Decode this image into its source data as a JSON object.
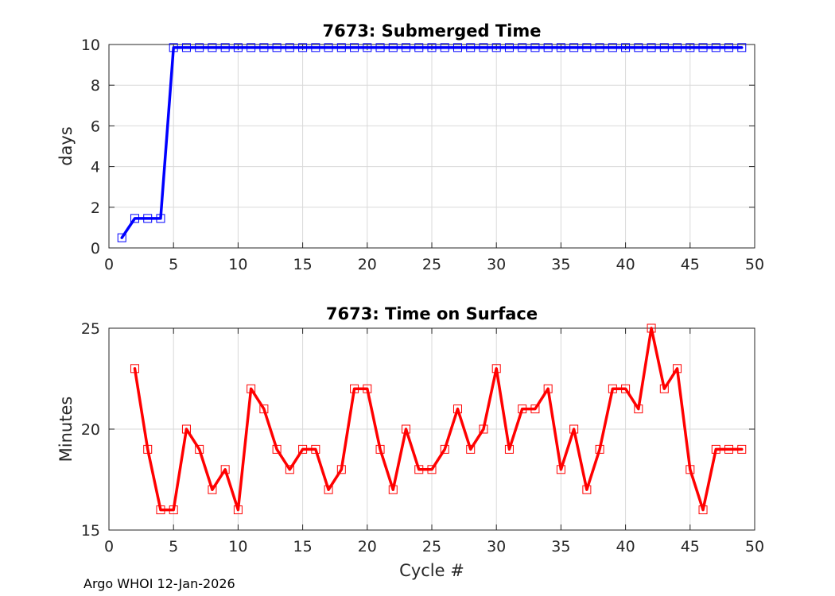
{
  "footer": "Argo WHOI 12-Jan-2026",
  "chart_data": [
    {
      "type": "line",
      "title": "7673: Submerged Time",
      "xlabel": "",
      "ylabel": "days",
      "xlim": [
        0,
        50
      ],
      "ylim": [
        0,
        10
      ],
      "xticks": [
        0,
        5,
        10,
        15,
        20,
        25,
        30,
        35,
        40,
        45,
        50
      ],
      "yticks": [
        0,
        2,
        4,
        6,
        8,
        10
      ],
      "grid": true,
      "color": "#0000ff",
      "marker": "square",
      "series": [
        {
          "name": "Submerged Time",
          "x": [
            1,
            2,
            3,
            4,
            5,
            6,
            7,
            8,
            9,
            10,
            11,
            12,
            13,
            14,
            15,
            16,
            17,
            18,
            19,
            20,
            21,
            22,
            23,
            24,
            25,
            26,
            27,
            28,
            29,
            30,
            31,
            32,
            33,
            34,
            35,
            36,
            37,
            38,
            39,
            40,
            41,
            42,
            43,
            44,
            45,
            46,
            47,
            48,
            49
          ],
          "y": [
            0.5,
            1.45,
            1.45,
            1.45,
            9.85,
            9.85,
            9.85,
            9.85,
            9.85,
            9.85,
            9.85,
            9.85,
            9.85,
            9.85,
            9.85,
            9.85,
            9.85,
            9.85,
            9.85,
            9.85,
            9.85,
            9.85,
            9.85,
            9.85,
            9.85,
            9.85,
            9.85,
            9.85,
            9.85,
            9.85,
            9.85,
            9.85,
            9.85,
            9.85,
            9.85,
            9.85,
            9.85,
            9.85,
            9.85,
            9.85,
            9.85,
            9.85,
            9.85,
            9.85,
            9.85,
            9.85,
            9.85,
            9.85,
            9.85
          ]
        }
      ]
    },
    {
      "type": "line",
      "title": "7673: Time on Surface",
      "xlabel": "Cycle #",
      "ylabel": "Minutes",
      "xlim": [
        0,
        50
      ],
      "ylim": [
        15,
        25
      ],
      "xticks": [
        0,
        5,
        10,
        15,
        20,
        25,
        30,
        35,
        40,
        45,
        50
      ],
      "yticks": [
        15,
        20,
        25
      ],
      "grid": true,
      "color": "#ff0000",
      "marker": "square",
      "series": [
        {
          "name": "Time on Surface",
          "x": [
            2,
            3,
            4,
            5,
            6,
            7,
            8,
            9,
            10,
            11,
            12,
            13,
            14,
            15,
            16,
            17,
            18,
            19,
            20,
            21,
            22,
            23,
            24,
            25,
            26,
            27,
            28,
            29,
            30,
            31,
            32,
            33,
            34,
            35,
            36,
            37,
            38,
            39,
            40,
            41,
            42,
            43,
            44,
            45,
            46,
            47,
            48,
            49
          ],
          "y": [
            23,
            19,
            16,
            16,
            20,
            19,
            17,
            18,
            16,
            22,
            21,
            19,
            18,
            19,
            19,
            17,
            18,
            22,
            22,
            19,
            17,
            20,
            18,
            18,
            19,
            21,
            19,
            20,
            23,
            19,
            21,
            21,
            22,
            18,
            20,
            17,
            19,
            22,
            22,
            21,
            25,
            22,
            23,
            18,
            16,
            19,
            19,
            19
          ]
        }
      ]
    }
  ]
}
